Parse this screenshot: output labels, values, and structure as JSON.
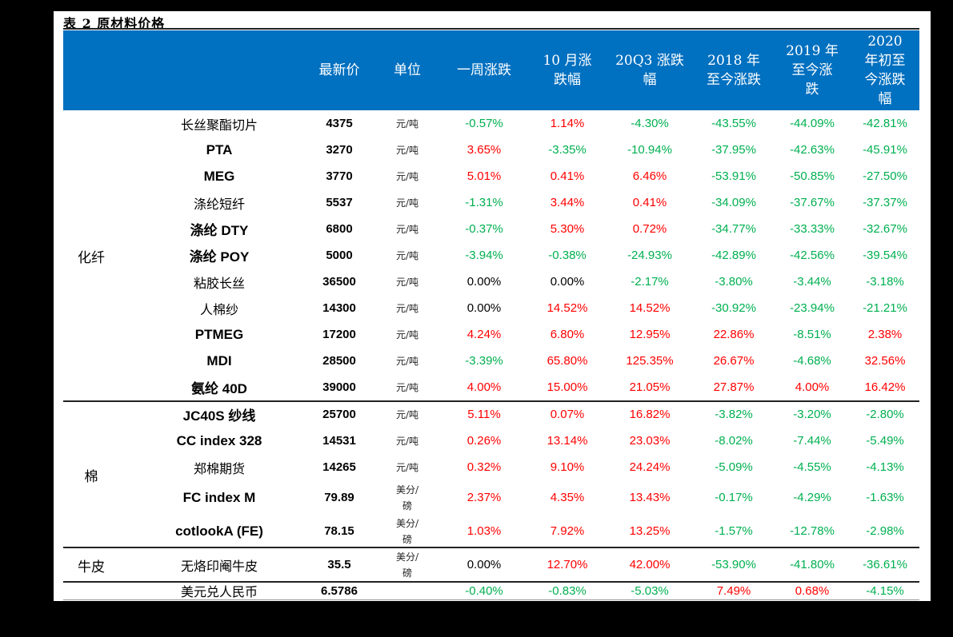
{
  "title": "表 2 原材料价格",
  "header": {
    "columns": [
      {
        "key": "price",
        "label": "最新价"
      },
      {
        "key": "unit",
        "label": "单位"
      },
      {
        "key": "week",
        "label": "一周涨跌"
      },
      {
        "key": "oct",
        "label": "10 月涨\n跌幅"
      },
      {
        "key": "q3",
        "label": "20Q3 涨跌\n幅"
      },
      {
        "key": "y2018",
        "label": "2018 年\n至今涨跌"
      },
      {
        "key": "y2019",
        "label": "2019 年\n至今涨\n跌"
      },
      {
        "key": "y2020",
        "label": "2020\n年初至\n今涨跌\n幅"
      }
    ]
  },
  "colors": {
    "header_bg": "#0070c0",
    "positive": "#ff0000",
    "negative": "#00b050"
  },
  "categories": [
    {
      "label": "化纤"
    },
    {
      "label": "棉"
    },
    {
      "label": "牛皮"
    }
  ],
  "rows": [
    {
      "name": "长丝聚酯切片",
      "price": "4375",
      "unit": "元/吨",
      "week": "-0.57%",
      "oct": "1.14%",
      "q3": "-4.30%",
      "y2018": "-43.55%",
      "y2019": "-44.09%",
      "y2020": "-42.81%"
    },
    {
      "name": "PTA",
      "price": "3270",
      "unit": "元/吨",
      "week": "3.65%",
      "oct": "-3.35%",
      "q3": "-10.94%",
      "y2018": "-37.95%",
      "y2019": "-42.63%",
      "y2020": "-45.91%"
    },
    {
      "name": "MEG",
      "price": "3770",
      "unit": "元/吨",
      "week": "5.01%",
      "oct": "0.41%",
      "q3": "6.46%",
      "y2018": "-53.91%",
      "y2019": "-50.85%",
      "y2020": "-27.50%"
    },
    {
      "name": "涤纶短纤",
      "price": "5537",
      "unit": "元/吨",
      "week": "-1.31%",
      "oct": "3.44%",
      "q3": "0.41%",
      "y2018": "-34.09%",
      "y2019": "-37.67%",
      "y2020": "-37.37%"
    },
    {
      "name": "涤纶 DTY",
      "price": "6800",
      "unit": "元/吨",
      "week": "-0.37%",
      "oct": "5.30%",
      "q3": "0.72%",
      "y2018": "-34.77%",
      "y2019": "-33.33%",
      "y2020": "-32.67%"
    },
    {
      "name": "涤纶 POY",
      "price": "5000",
      "unit": "元/吨",
      "week": "-3.94%",
      "oct": "-0.38%",
      "q3": "-24.93%",
      "y2018": "-42.89%",
      "y2019": "-42.56%",
      "y2020": "-39.54%"
    },
    {
      "name": "粘胶长丝",
      "price": "36500",
      "unit": "元/吨",
      "week": "0.00%",
      "oct": "0.00%",
      "q3": "-2.17%",
      "y2018": "-3.80%",
      "y2019": "-3.44%",
      "y2020": "-3.18%"
    },
    {
      "name": "人棉纱",
      "price": "14300",
      "unit": "元/吨",
      "week": "0.00%",
      "oct": "14.52%",
      "q3": "14.52%",
      "y2018": "-30.92%",
      "y2019": "-23.94%",
      "y2020": "-21.21%"
    },
    {
      "name": "PTMEG",
      "price": "17200",
      "unit": "元/吨",
      "week": "4.24%",
      "oct": "6.80%",
      "q3": "12.95%",
      "y2018": "22.86%",
      "y2019": "-8.51%",
      "y2020": "2.38%"
    },
    {
      "name": "MDI",
      "price": "28500",
      "unit": "元/吨",
      "week": "-3.39%",
      "oct": "65.80%",
      "q3": "125.35%",
      "y2018": "26.67%",
      "y2019": "-4.68%",
      "y2020": "32.56%"
    },
    {
      "name": "氨纶 40D",
      "price": "39000",
      "unit": "元/吨",
      "week": "4.00%",
      "oct": "15.00%",
      "q3": "21.05%",
      "y2018": "27.87%",
      "y2019": "4.00%",
      "y2020": "16.42%"
    },
    {
      "name": "JC40S 纱线",
      "price": "25700",
      "unit": "元/吨",
      "week": "5.11%",
      "oct": "0.07%",
      "q3": "16.82%",
      "y2018": "-3.82%",
      "y2019": "-3.20%",
      "y2020": "-2.80%"
    },
    {
      "name": "CC index 328",
      "price": "14531",
      "unit": "元/吨",
      "week": "0.26%",
      "oct": "13.14%",
      "q3": "23.03%",
      "y2018": "-8.02%",
      "y2019": "-7.44%",
      "y2020": "-5.49%"
    },
    {
      "name": "郑棉期货",
      "price": "14265",
      "unit": "元/吨",
      "week": "0.32%",
      "oct": "9.10%",
      "q3": "24.24%",
      "y2018": "-5.09%",
      "y2019": "-4.55%",
      "y2020": "-4.13%"
    },
    {
      "name": "FC index M",
      "price": "79.89",
      "unit": "美分/\n磅",
      "week": "2.37%",
      "oct": "4.35%",
      "q3": "13.43%",
      "y2018": "-0.17%",
      "y2019": "-4.29%",
      "y2020": "-1.63%"
    },
    {
      "name": "cotlookA (FE)",
      "price": "78.15",
      "unit": "美分/\n磅",
      "week": "1.03%",
      "oct": "7.92%",
      "q3": "13.25%",
      "y2018": "-1.57%",
      "y2019": "-12.78%",
      "y2020": "-2.98%"
    },
    {
      "name": "无烙印阉牛皮",
      "price": "35.5",
      "unit": "美分/\n磅",
      "week": "0.00%",
      "oct": "12.70%",
      "q3": "42.00%",
      "y2018": "-53.90%",
      "y2019": "-41.80%",
      "y2020": "-36.61%"
    },
    {
      "name": "美元兑人民币",
      "price": "6.5786",
      "unit": "",
      "week": "-0.40%",
      "oct": "-0.83%",
      "q3": "-5.03%",
      "y2018": "7.49%",
      "y2019": "0.68%",
      "y2020": "-4.15%"
    }
  ]
}
